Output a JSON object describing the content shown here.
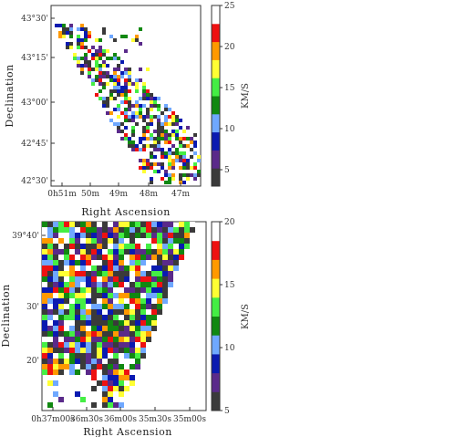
{
  "chart_data": [
    {
      "type": "heatmap",
      "title": "",
      "xlabel": "Right Ascension",
      "ylabel": "Declination",
      "x_ticks": [
        "0h51m",
        "50m",
        "49m",
        "48m",
        "47m"
      ],
      "y_ticks": [
        "42°30'",
        "42°45'",
        "43°00'",
        "43°15'",
        "43°30'"
      ],
      "colorbar": {
        "label": "KM/S",
        "range": [
          3,
          25
        ],
        "ticks": [
          "5",
          "10",
          "15",
          "20",
          "25"
        ],
        "colors": [
          "#3a3a3a",
          "#5a2a8a",
          "#0a1ab0",
          "#6fa8ff",
          "#118811",
          "#44ee44",
          "#ffff33",
          "#ff9900",
          "#ee1111",
          "#ffffff"
        ]
      },
      "pattern": "diagonal band of sparse velocity-dispersion pixels running from upper-left to lower-right"
    },
    {
      "type": "heatmap",
      "title": "",
      "xlabel": "Right Ascension",
      "ylabel": "Declination",
      "x_ticks": [
        "0h37m00s",
        "36m30s",
        "36m00s",
        "35m30s",
        "35m00s"
      ],
      "y_ticks": [
        "20'",
        "30'",
        "39°40'"
      ],
      "colorbar": {
        "label": "KM/S",
        "range": [
          5,
          20
        ],
        "ticks": [
          "5",
          "10",
          "15",
          "20"
        ],
        "colors": [
          "#3a3a3a",
          "#5a2a8a",
          "#0a1ab0",
          "#6fa8ff",
          "#118811",
          "#44ee44",
          "#ffff33",
          "#ff9900",
          "#ee1111",
          "#ffffff"
        ]
      },
      "pattern": "dense pixel map filling upper-left region, tapering toward lower-right"
    }
  ]
}
